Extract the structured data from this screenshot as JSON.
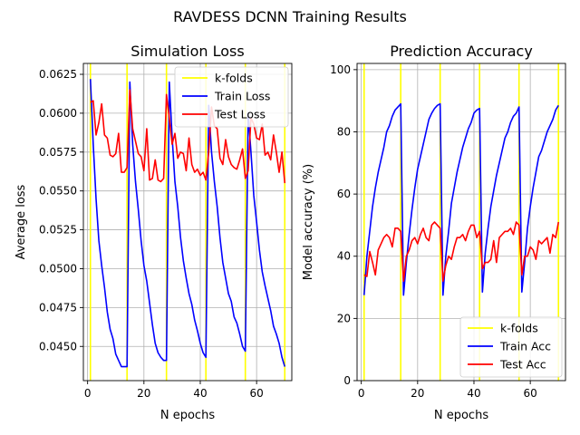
{
  "figure": {
    "suptitle": "RAVDESS DCNN Training Results"
  },
  "colors": {
    "kfold": "#ffff00",
    "train": "#0000ff",
    "test": "#ff0000",
    "grid": "#b0b0b0"
  },
  "chart_data": [
    {
      "type": "line",
      "title": "Simulation Loss",
      "xlabel": "N epochs",
      "ylabel": "Average loss",
      "xlim": [
        -1.5,
        72.5
      ],
      "ylim": [
        0.0428,
        0.0632
      ],
      "xticks": [
        0,
        20,
        40,
        60
      ],
      "xtick_labels": [
        "0",
        "20",
        "40",
        "60"
      ],
      "yticks": [
        0.045,
        0.0475,
        0.05,
        0.0525,
        0.055,
        0.0575,
        0.06,
        0.0625
      ],
      "ytick_labels": [
        "0.0450",
        "0.0475",
        "0.0500",
        "0.0525",
        "0.0550",
        "0.0575",
        "0.0600",
        "0.0625"
      ],
      "grid": true,
      "legend": "top-right",
      "kfolds": {
        "name": "k-folds",
        "x": [
          1,
          14,
          28,
          42,
          56,
          70
        ]
      },
      "series": [
        {
          "name": "Train Loss",
          "x": [
            1,
            2,
            3,
            4,
            5,
            6,
            7,
            8,
            9,
            10,
            11,
            12,
            13,
            14,
            15,
            16,
            17,
            18,
            19,
            20,
            21,
            22,
            23,
            24,
            25,
            26,
            27,
            28,
            29,
            30,
            31,
            32,
            33,
            34,
            35,
            36,
            37,
            38,
            39,
            40,
            41,
            42,
            43,
            44,
            45,
            46,
            47,
            48,
            49,
            50,
            51,
            52,
            53,
            54,
            55,
            56,
            57,
            58,
            59,
            60,
            61,
            62,
            63,
            64,
            65,
            66,
            67,
            68,
            69,
            70
          ],
          "y": [
            0.0622,
            0.058,
            0.0545,
            0.0518,
            0.0502,
            0.0488,
            0.0472,
            0.0461,
            0.0455,
            0.0445,
            0.0441,
            0.0437,
            0.0437,
            0.0437,
            0.062,
            0.058,
            0.0556,
            0.0538,
            0.0518,
            0.0502,
            0.0492,
            0.0478,
            0.0464,
            0.0452,
            0.0446,
            0.0443,
            0.0441,
            0.0441,
            0.062,
            0.0585,
            0.0556,
            0.054,
            0.052,
            0.0505,
            0.0494,
            0.0484,
            0.0477,
            0.0467,
            0.046,
            0.0452,
            0.0446,
            0.0443,
            0.0605,
            0.0575,
            0.0556,
            0.054,
            0.052,
            0.0504,
            0.0494,
            0.0484,
            0.0479,
            0.0469,
            0.0465,
            0.0458,
            0.045,
            0.0447,
            0.06,
            0.0575,
            0.0547,
            0.053,
            0.0512,
            0.0498,
            0.0489,
            0.0481,
            0.0473,
            0.0463,
            0.0458,
            0.0452,
            0.0443,
            0.0437
          ]
        },
        {
          "name": "Test Loss",
          "x": [
            1,
            2,
            3,
            4,
            5,
            6,
            7,
            8,
            9,
            10,
            11,
            12,
            13,
            14,
            15,
            16,
            17,
            18,
            19,
            20,
            21,
            22,
            23,
            24,
            25,
            26,
            27,
            28,
            29,
            30,
            31,
            32,
            33,
            34,
            35,
            36,
            37,
            38,
            39,
            40,
            41,
            42,
            43,
            44,
            45,
            46,
            47,
            48,
            49,
            50,
            51,
            52,
            53,
            54,
            55,
            56,
            57,
            58,
            59,
            60,
            61,
            62,
            63,
            64,
            65,
            66,
            67,
            68,
            69,
            70
          ],
          "y": [
            0.0607,
            0.0608,
            0.0586,
            0.0594,
            0.0606,
            0.0586,
            0.0584,
            0.0573,
            0.0572,
            0.0574,
            0.0587,
            0.0562,
            0.0562,
            0.0565,
            0.0615,
            0.059,
            0.0582,
            0.0574,
            0.0572,
            0.0563,
            0.059,
            0.0557,
            0.0558,
            0.057,
            0.0557,
            0.0556,
            0.0558,
            0.0612,
            0.0597,
            0.058,
            0.0587,
            0.0571,
            0.0575,
            0.0574,
            0.0563,
            0.0584,
            0.0567,
            0.0562,
            0.0564,
            0.056,
            0.0562,
            0.0557,
            0.0575,
            0.0604,
            0.0592,
            0.059,
            0.0571,
            0.0567,
            0.0583,
            0.0572,
            0.0567,
            0.0565,
            0.0564,
            0.057,
            0.0577,
            0.0558,
            0.0563,
            0.0597,
            0.0593,
            0.0584,
            0.0583,
            0.0593,
            0.0573,
            0.0575,
            0.057,
            0.0586,
            0.0575,
            0.0562,
            0.0575,
            0.0555
          ]
        }
      ]
    },
    {
      "type": "line",
      "title": "Prediction Accuracy",
      "xlabel": "N epochs",
      "ylabel": "Model accuracy (%)",
      "xlim": [
        -1.5,
        72.5
      ],
      "ylim": [
        0,
        102
      ],
      "xticks": [
        0,
        20,
        40,
        60
      ],
      "xtick_labels": [
        "0",
        "20",
        "40",
        "60"
      ],
      "yticks": [
        0,
        20,
        40,
        60,
        80,
        100
      ],
      "ytick_labels": [
        "0",
        "20",
        "40",
        "60",
        "80",
        "100"
      ],
      "grid": true,
      "legend": "bottom-right",
      "kfolds": {
        "name": "k-folds",
        "x": [
          1,
          14,
          28,
          42,
          56,
          70
        ]
      },
      "series": [
        {
          "name": "Train Acc",
          "x": [
            1,
            2,
            3,
            4,
            5,
            6,
            7,
            8,
            9,
            10,
            11,
            12,
            13,
            14,
            15,
            16,
            17,
            18,
            19,
            20,
            21,
            22,
            23,
            24,
            25,
            26,
            27,
            28,
            29,
            30,
            31,
            32,
            33,
            34,
            35,
            36,
            37,
            38,
            39,
            40,
            41,
            42,
            43,
            44,
            45,
            46,
            47,
            48,
            49,
            50,
            51,
            52,
            53,
            54,
            55,
            56,
            57,
            58,
            59,
            60,
            61,
            62,
            63,
            64,
            65,
            66,
            67,
            68,
            69,
            70
          ],
          "y": [
            27.5,
            40,
            48,
            56,
            62,
            67,
            71,
            75,
            80,
            82,
            85,
            87,
            88,
            89,
            27.5,
            38,
            47,
            55,
            62,
            68,
            72,
            76,
            80,
            84,
            86,
            87.5,
            88.5,
            89,
            27.5,
            40,
            48,
            57,
            62,
            67,
            71,
            75,
            78,
            81,
            83,
            86,
            87,
            87.5,
            28.5,
            41,
            49,
            56,
            61,
            66,
            70,
            74,
            78,
            80,
            83,
            85,
            86,
            88,
            28.5,
            38,
            49,
            56,
            62,
            67,
            72,
            74,
            77,
            80,
            82,
            84,
            87,
            88.5
          ]
        },
        {
          "name": "Test Acc",
          "x": [
            1,
            2,
            3,
            4,
            5,
            6,
            7,
            8,
            9,
            10,
            11,
            12,
            13,
            14,
            15,
            16,
            17,
            18,
            19,
            20,
            21,
            22,
            23,
            24,
            25,
            26,
            27,
            28,
            29,
            30,
            31,
            32,
            33,
            34,
            35,
            36,
            37,
            38,
            39,
            40,
            41,
            42,
            43,
            44,
            45,
            46,
            47,
            48,
            49,
            50,
            51,
            52,
            53,
            54,
            55,
            56,
            57,
            58,
            59,
            60,
            61,
            62,
            63,
            64,
            65,
            66,
            67,
            68,
            69,
            70
          ],
          "y": [
            34,
            33.5,
            41.5,
            38,
            34,
            42,
            44,
            46,
            47,
            46,
            43,
            49,
            49,
            48,
            32,
            40,
            42,
            45,
            46,
            44,
            47,
            49,
            46,
            45,
            50,
            51,
            50,
            49,
            32,
            37,
            40,
            39,
            43,
            46,
            46,
            47,
            45,
            48,
            50,
            50,
            46,
            48,
            36,
            38,
            38,
            39,
            45,
            38,
            46,
            47,
            48,
            48,
            49,
            47,
            51,
            50,
            34,
            40,
            40,
            43,
            42,
            39,
            45,
            44,
            45,
            46,
            41,
            47,
            46,
            51
          ]
        }
      ]
    }
  ]
}
